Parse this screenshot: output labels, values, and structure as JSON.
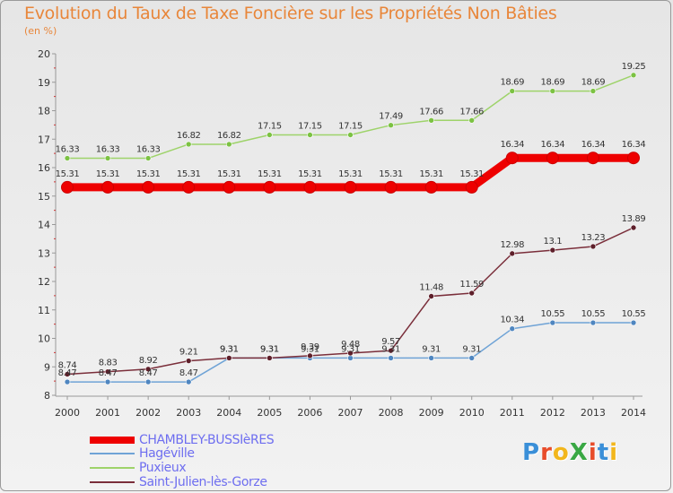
{
  "title": "Evolution du Taux de Taxe Foncière sur les Propriétés Non Bâties",
  "unit_label": "(en %)",
  "logo": {
    "text": "ProXiti",
    "colors": [
      "#3a8fd8",
      "#e84c2a",
      "#f2b61c",
      "#39a844",
      "#e84c2a",
      "#3a8fd8",
      "#f2b61c"
    ]
  },
  "chart_data": {
    "type": "line",
    "title": "Evolution du Taux de Taxe Foncière sur les Propriétés Non Bâties",
    "ylabel": "(en %)",
    "xlabel": "",
    "x": [
      "2000",
      "2001",
      "2002",
      "2003",
      "2004",
      "2005",
      "2006",
      "2007",
      "2008",
      "2009",
      "2010",
      "2011",
      "2012",
      "2013",
      "2014"
    ],
    "ylim": [
      8,
      20
    ],
    "yticks": [
      "8",
      "9",
      "10",
      "11",
      "12",
      "13",
      "14",
      "15",
      "16",
      "17",
      "18",
      "19",
      "20"
    ],
    "grid": false,
    "legend": "bottom-left",
    "series": [
      {
        "name": "CHAMBLEY-BUSSIèRES",
        "color": "#ee0000",
        "marker": "#cc0000",
        "width": "thick",
        "values": [
          15.31,
          15.31,
          15.31,
          15.31,
          15.31,
          15.31,
          15.31,
          15.31,
          15.31,
          15.31,
          15.31,
          16.34,
          16.34,
          16.34,
          16.34
        ],
        "labels": [
          "15.31",
          "15.31",
          "15.31",
          "15.31",
          "15.31",
          "15.31",
          "15.31",
          "15.31",
          "15.31",
          "15.31",
          "15.31",
          "16.34",
          "16.34",
          "16.34",
          "16.34"
        ]
      },
      {
        "name": "Hagéville",
        "color": "#6fa3d6",
        "marker": "#4f86c0",
        "width": "thin",
        "values": [
          8.47,
          8.47,
          8.47,
          8.47,
          9.31,
          9.31,
          9.31,
          9.31,
          9.31,
          9.31,
          9.31,
          10.34,
          10.55,
          10.55,
          10.55
        ],
        "labels": [
          "8.47",
          "8.47",
          "8.47",
          "8.47",
          "9.31",
          "9.31",
          "9.31",
          "9.31",
          "9.31",
          "9.31",
          "9.31",
          "10.34",
          "10.55",
          "10.55",
          "10.55"
        ]
      },
      {
        "name": "Puxieux",
        "color": "#9ed36a",
        "marker": "#7cc243",
        "width": "thin",
        "values": [
          16.33,
          16.33,
          16.33,
          16.82,
          16.82,
          17.15,
          17.15,
          17.15,
          17.49,
          17.66,
          17.66,
          18.69,
          18.69,
          18.69,
          19.25
        ],
        "labels": [
          "16.33",
          "16.33",
          "16.33",
          "16.82",
          "16.82",
          "17.15",
          "17.15",
          "17.15",
          "17.49",
          "17.66",
          "17.66",
          "18.69",
          "18.69",
          "18.69",
          "19.25"
        ]
      },
      {
        "name": "Saint-Julien-lès-Gorze",
        "color": "#7a2e3a",
        "marker": "#5e1f2a",
        "width": "thin",
        "values": [
          8.74,
          8.83,
          8.92,
          9.21,
          9.31,
          9.31,
          9.39,
          9.48,
          9.57,
          11.48,
          11.59,
          12.98,
          13.1,
          13.23,
          13.89
        ],
        "labels": [
          "8.74",
          "8.83",
          "8.92",
          "9.21",
          "9.31",
          "9.31",
          "9.39",
          "9.48",
          "9.57",
          "11.48",
          "11.59",
          "12.98",
          "13.1",
          "13.23",
          "13.89"
        ]
      }
    ]
  }
}
